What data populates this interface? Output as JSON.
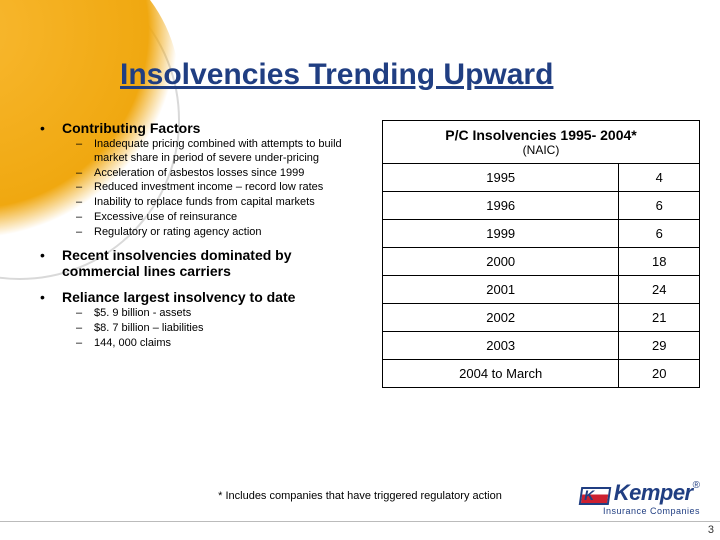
{
  "title": "Insolvencies Trending Upward",
  "left": {
    "b1": "Contributing Factors",
    "b1_subs": [
      "Inadequate pricing combined with attempts to build market share in period of severe under-pricing",
      "Acceleration of asbestos losses since 1999",
      "Reduced investment income – record low rates",
      "Inability to replace funds from capital markets",
      "Excessive use of reinsurance",
      "Regulatory or rating agency action"
    ],
    "b2": "Recent insolvencies dominated by commercial lines carriers",
    "b3": "Reliance largest insolvency to date",
    "b3_subs": [
      "$5. 9 billion - assets",
      "$8. 7 billion – liabilities",
      "144, 000 claims"
    ]
  },
  "table": {
    "header": "P/C Insolvencies 1995- 2004*",
    "subheader": "(NAIC)",
    "rows": [
      {
        "y": "1995",
        "n": "4"
      },
      {
        "y": "1996",
        "n": "6"
      },
      {
        "y": "1999",
        "n": "6"
      },
      {
        "y": "2000",
        "n": "18"
      },
      {
        "y": "2001",
        "n": "24"
      },
      {
        "y": "2002",
        "n": "21"
      },
      {
        "y": "2003",
        "n": "29"
      },
      {
        "y": "2004 to March",
        "n": "20"
      }
    ]
  },
  "footnote": "* Includes companies that have triggered regulatory action",
  "logo": {
    "name": "Kemper",
    "sub": "Insurance Companies"
  },
  "slide_num": "3"
}
